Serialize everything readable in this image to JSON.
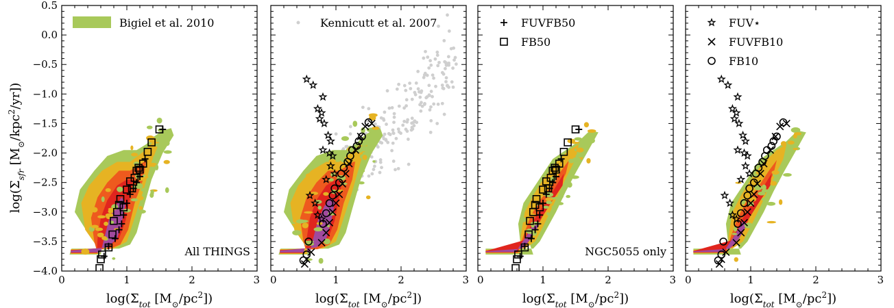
{
  "chart_data": {
    "type": "scatter",
    "colors": {
      "band1": "#a8c95a",
      "band2": "#e6b323",
      "band3": "#ee5a1e",
      "band4": "#e0251e",
      "band5": "#a04a9e",
      "kennicutt": "#cfcfcf"
    },
    "shared": {
      "xlabel": "log(Σtot [M⊙/pc²])",
      "ylabel": "log(Σsfr [M⊙/kpc²/yr])",
      "xlim": [
        0,
        3
      ],
      "ylim": [
        -4,
        0.5
      ],
      "xticks": [
        "0",
        "1",
        "2",
        "3"
      ],
      "yticks": [
        "−4.0",
        "−3.5",
        "−3.0",
        "−2.5",
        "−2.0",
        "−1.5",
        "−1.0",
        "−0.5",
        "0.0",
        "0.5"
      ]
    },
    "panels": [
      {
        "note": "All THINGS",
        "legend": [
          {
            "label": "Bigiel et al. 2010",
            "marker": "band"
          }
        ],
        "density": "all",
        "series": [
          {
            "name": "FB50",
            "marker": "square",
            "x": [
              0.58,
              0.6,
              0.62,
              0.72,
              0.78,
              0.8,
              0.85,
              0.88,
              0.9,
              0.95,
              1.0,
              1.05,
              1.08,
              1.12,
              1.15,
              1.18,
              1.2,
              1.25,
              1.32,
              1.38,
              1.5
            ],
            "y": [
              -3.95,
              -3.8,
              -3.72,
              -3.6,
              -3.38,
              -3.15,
              -3.0,
              -2.88,
              -2.78,
              -2.92,
              -2.62,
              -2.48,
              -2.6,
              -2.42,
              -2.3,
              -2.25,
              -2.28,
              -2.18,
              -1.98,
              -1.82,
              -1.6
            ]
          },
          {
            "name": "FUVFB50",
            "marker": "plus",
            "x": [
              0.65,
              0.72,
              0.82,
              0.88,
              0.92,
              0.95,
              1.0,
              1.05,
              1.1,
              1.15,
              1.2,
              1.28,
              1.55
            ],
            "y": [
              -3.75,
              -3.58,
              -3.45,
              -3.3,
              -3.2,
              -3.05,
              -2.85,
              -2.7,
              -2.6,
              -2.5,
              -2.4,
              -2.1,
              -1.6
            ]
          }
        ]
      },
      {
        "note": "",
        "legend": [
          {
            "label": "Kennicutt et al. 2007",
            "marker": "dot"
          }
        ],
        "density": "all",
        "kennicutt": true,
        "series": [
          {
            "name": "FUV*",
            "marker": "star",
            "x": [
              0.55,
              0.65,
              0.8,
              0.72,
              0.78,
              0.75,
              0.82,
              0.88,
              0.92,
              0.8,
              0.9,
              0.95,
              0.92,
              0.98,
              0.85,
              0.6,
              0.68,
              0.72,
              0.78
            ],
            "y": [
              -0.75,
              -0.85,
              -1.05,
              -1.25,
              -1.32,
              -1.42,
              -1.5,
              -1.7,
              -1.8,
              -1.95,
              -2.0,
              -2.05,
              -2.22,
              -2.35,
              -2.45,
              -2.72,
              -2.85,
              -3.05,
              -3.12
            ]
          },
          {
            "name": "FUVFB10",
            "marker": "x",
            "x": [
              0.52,
              0.55,
              0.62,
              0.78,
              0.85,
              0.9,
              0.95,
              1.0,
              1.05,
              1.1,
              1.15,
              1.2,
              1.3,
              1.38,
              1.45,
              1.55
            ],
            "y": [
              -3.88,
              -3.8,
              -3.68,
              -3.52,
              -3.35,
              -3.18,
              -3.0,
              -2.85,
              -2.7,
              -2.52,
              -2.35,
              -2.18,
              -1.95,
              -1.72,
              -1.55,
              -1.5
            ]
          },
          {
            "name": "FB10",
            "marker": "circle",
            "x": [
              0.5,
              0.55,
              0.58,
              0.8,
              0.85,
              0.9,
              0.95,
              0.98,
              1.05,
              1.08,
              1.12,
              1.18,
              1.22,
              1.25,
              1.32,
              1.35,
              1.4,
              1.5
            ],
            "y": [
              -3.82,
              -3.72,
              -3.5,
              -3.2,
              -3.02,
              -2.85,
              -2.72,
              -2.6,
              -2.5,
              -2.35,
              -2.25,
              -2.15,
              -2.05,
              -1.95,
              -1.88,
              -1.8,
              -1.72,
              -1.48
            ]
          }
        ]
      },
      {
        "note": "NGC5055 only",
        "legend": [
          {
            "label": "FUVFB50",
            "marker": "plus"
          },
          {
            "label": "FB50",
            "marker": "square"
          }
        ],
        "density": "ngc",
        "series": [
          {
            "name": "FB50",
            "marker": "square",
            "x": [
              0.58,
              0.6,
              0.62,
              0.72,
              0.78,
              0.8,
              0.85,
              0.88,
              0.9,
              0.95,
              1.0,
              1.05,
              1.08,
              1.12,
              1.15,
              1.18,
              1.2,
              1.25,
              1.32,
              1.38,
              1.5
            ],
            "y": [
              -3.95,
              -3.8,
              -3.72,
              -3.6,
              -3.38,
              -3.15,
              -3.0,
              -2.88,
              -2.78,
              -2.92,
              -2.62,
              -2.48,
              -2.6,
              -2.42,
              -2.3,
              -2.25,
              -2.28,
              -2.18,
              -1.98,
              -1.82,
              -1.6
            ]
          },
          {
            "name": "FUVFB50",
            "marker": "plus",
            "x": [
              0.65,
              0.72,
              0.82,
              0.88,
              0.92,
              0.95,
              1.0,
              1.05,
              1.1,
              1.15,
              1.2,
              1.28,
              1.55
            ],
            "y": [
              -3.75,
              -3.58,
              -3.45,
              -3.3,
              -3.2,
              -3.05,
              -2.85,
              -2.7,
              -2.6,
              -2.5,
              -2.4,
              -2.1,
              -1.6
            ]
          }
        ]
      },
      {
        "note": "",
        "legend": [
          {
            "label": "FUV⋆",
            "marker": "star"
          },
          {
            "label": "FUVFB10",
            "marker": "x"
          },
          {
            "label": "FB10",
            "marker": "circle"
          }
        ],
        "density": "ngc",
        "series": [
          {
            "name": "FUV*",
            "marker": "star",
            "x": [
              0.55,
              0.65,
              0.8,
              0.72,
              0.78,
              0.75,
              0.82,
              0.88,
              0.92,
              0.8,
              0.9,
              0.95,
              0.92,
              0.98,
              0.85,
              0.6,
              0.68,
              0.72,
              0.78
            ],
            "y": [
              -0.75,
              -0.85,
              -1.05,
              -1.25,
              -1.32,
              -1.42,
              -1.5,
              -1.7,
              -1.8,
              -1.95,
              -2.0,
              -2.05,
              -2.22,
              -2.35,
              -2.45,
              -2.72,
              -2.85,
              -3.05,
              -3.12
            ]
          },
          {
            "name": "FUVFB10",
            "marker": "x",
            "x": [
              0.52,
              0.55,
              0.62,
              0.78,
              0.85,
              0.9,
              0.95,
              1.0,
              1.05,
              1.1,
              1.15,
              1.2,
              1.3,
              1.38,
              1.45,
              1.55
            ],
            "y": [
              -3.88,
              -3.8,
              -3.68,
              -3.52,
              -3.35,
              -3.18,
              -3.0,
              -2.85,
              -2.7,
              -2.52,
              -2.35,
              -2.18,
              -1.95,
              -1.72,
              -1.55,
              -1.5
            ]
          },
          {
            "name": "FB10",
            "marker": "circle",
            "x": [
              0.5,
              0.55,
              0.58,
              0.8,
              0.85,
              0.9,
              0.95,
              0.98,
              1.05,
              1.08,
              1.12,
              1.18,
              1.22,
              1.25,
              1.32,
              1.35,
              1.4,
              1.5
            ],
            "y": [
              -3.82,
              -3.72,
              -3.5,
              -3.2,
              -3.02,
              -2.85,
              -2.72,
              -2.6,
              -2.5,
              -2.35,
              -2.25,
              -2.15,
              -2.05,
              -1.95,
              -1.88,
              -1.8,
              -1.72,
              -1.48
            ]
          }
        ]
      }
    ]
  }
}
